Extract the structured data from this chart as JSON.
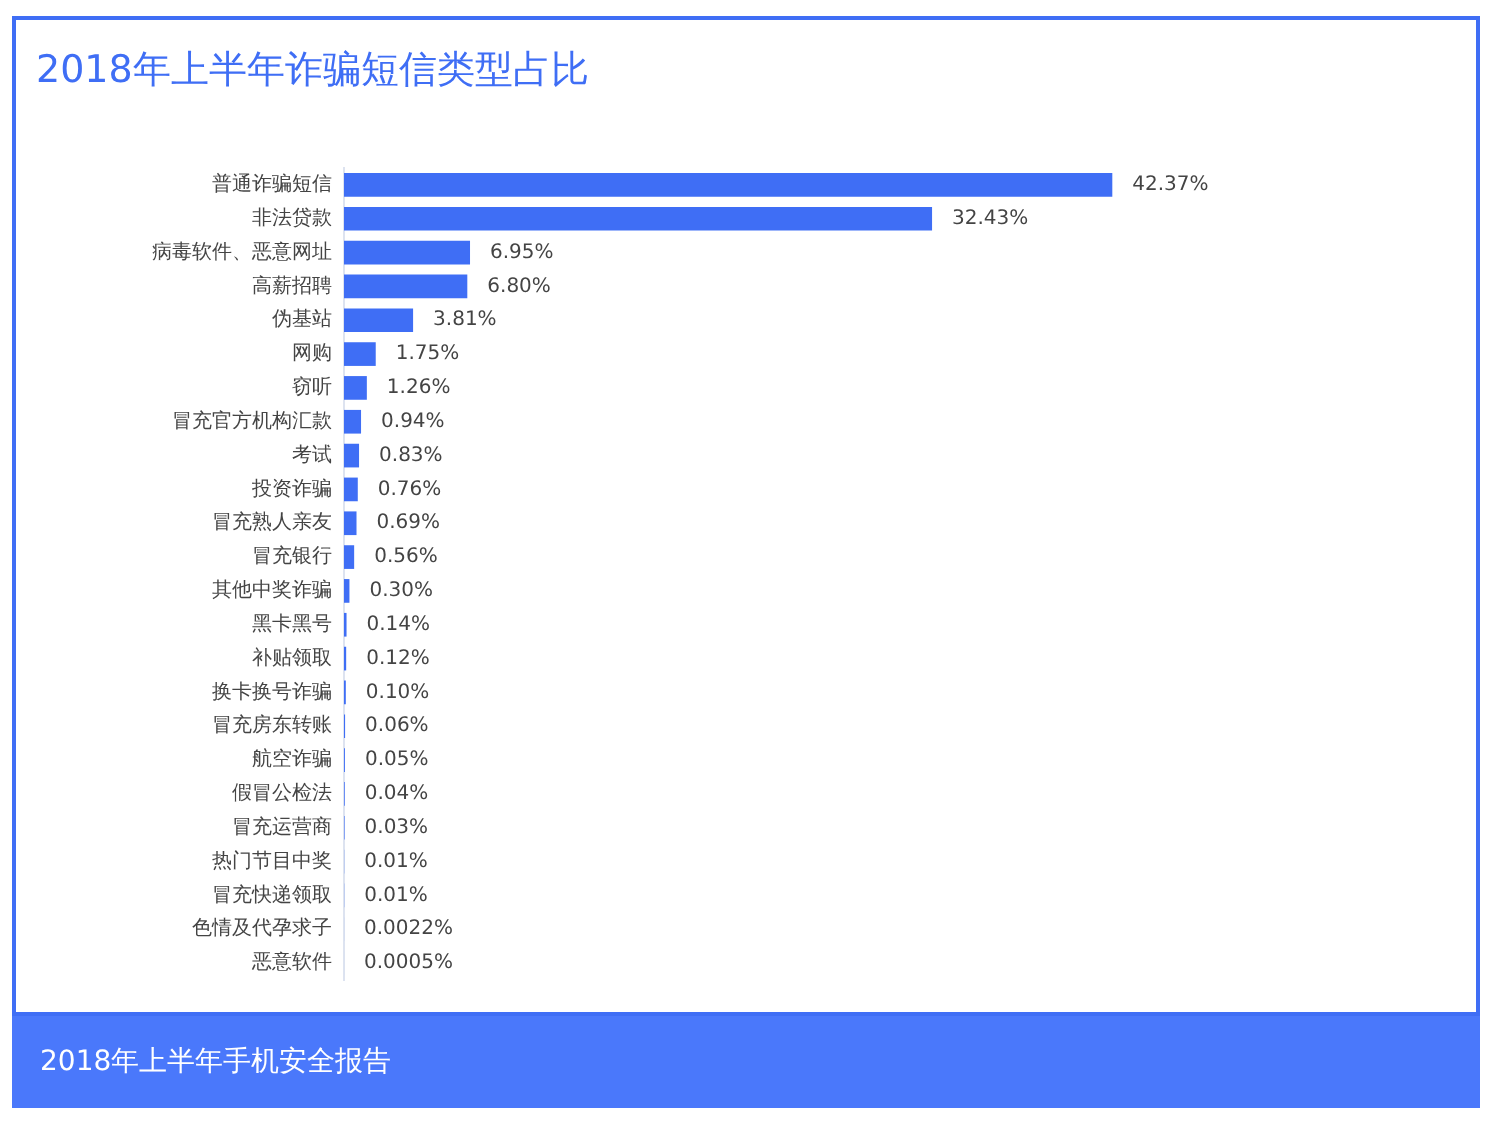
{
  "chart_data": {
    "type": "bar",
    "orientation": "horizontal",
    "title": "2018年上半年诈骗短信类型占比",
    "annotations": [
      "2018年上半年手机安全报告"
    ],
    "categories": [
      "普通诈骗短信",
      "非法贷款",
      "病毒软件、恶意网址",
      "高薪招聘",
      "伪基站",
      "网购",
      "窃听",
      "冒充官方机构汇款",
      "考试",
      "投资诈骗",
      "冒充熟人亲友",
      "冒充银行",
      "其他中奖诈骗",
      "黑卡黑号",
      "补贴领取",
      "换卡换号诈骗",
      "冒充房东转账",
      "航空诈骗",
      "假冒公检法",
      "冒充运营商",
      "热门节目中奖",
      "冒充快递领取",
      "色情及代孕求子",
      "恶意软件"
    ],
    "values": [
      42.37,
      32.43,
      6.95,
      6.8,
      3.81,
      1.75,
      1.26,
      0.94,
      0.83,
      0.76,
      0.69,
      0.56,
      0.3,
      0.14,
      0.12,
      0.1,
      0.06,
      0.05,
      0.04,
      0.03,
      0.01,
      0.01,
      0.0022,
      0.0005
    ],
    "value_labels": [
      "42.37%",
      "32.43%",
      "6.95%",
      "6.80%",
      "3.81%",
      "1.75%",
      "1.26%",
      "0.94%",
      "0.83%",
      "0.76%",
      "0.69%",
      "0.56%",
      "0.30%",
      "0.14%",
      "0.12%",
      "0.10%",
      "0.06%",
      "0.05%",
      "0.04%",
      "0.03%",
      "0.01%",
      "0.01%",
      "0.0022%",
      "0.0005%"
    ],
    "color": "#3f6ef5",
    "grid": false,
    "legend": false,
    "tick_labels": "y"
  }
}
